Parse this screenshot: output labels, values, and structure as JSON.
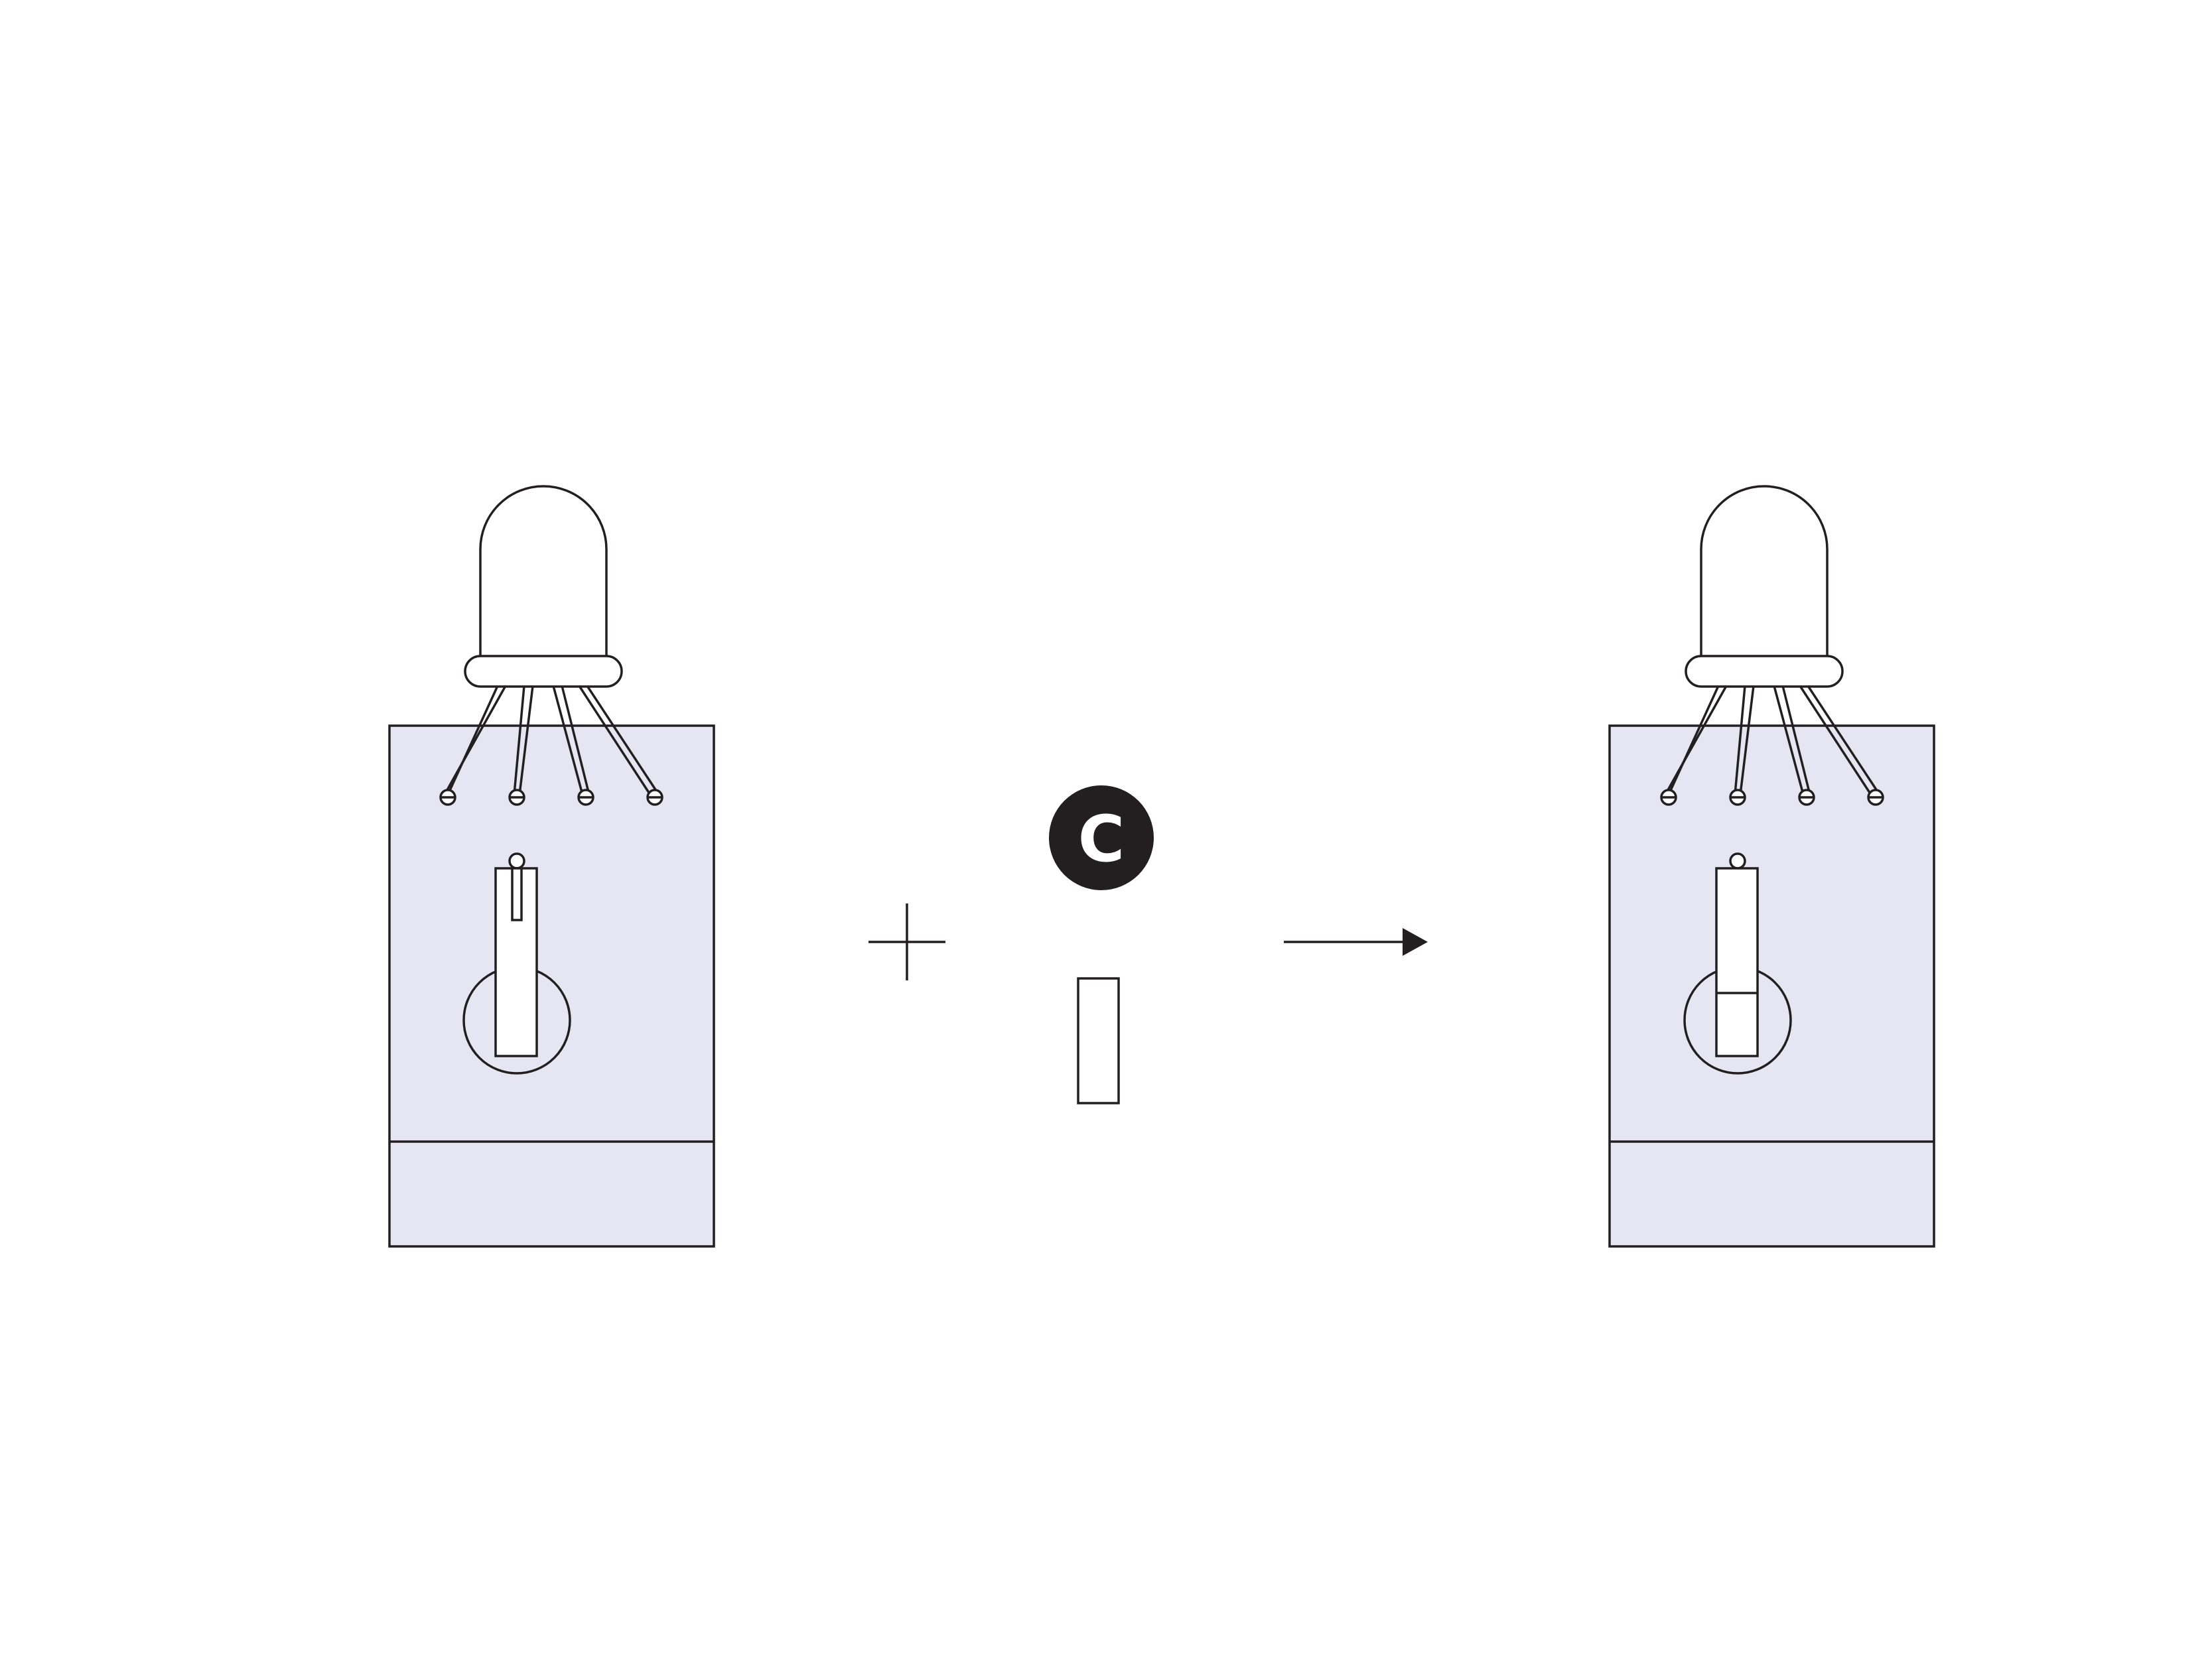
{
  "diagram": {
    "badge_label": "C",
    "colors": {
      "card_fill": "#e6e6f2",
      "stroke": "#231f20",
      "badge_fill": "#231f20",
      "badge_text": "#ffffff",
      "background": "#ffffff"
    },
    "icons": {
      "led": "led-bulb-icon",
      "plus": "plus-icon",
      "arrow": "arrow-right-icon"
    }
  }
}
